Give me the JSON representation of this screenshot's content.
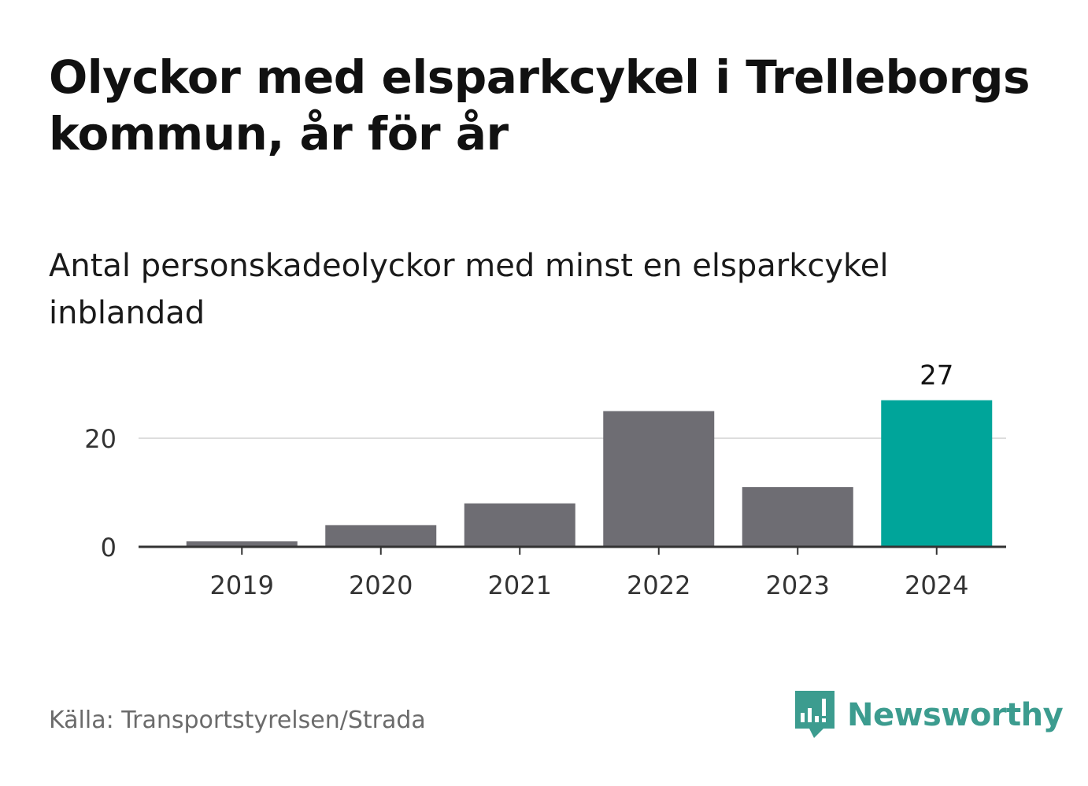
{
  "title": "Olyckor med elsparkcykel i Trelleborgs kommun, år för år",
  "subtitle": "Antal personskadeolyckor med minst en elsparkcykel inblandad",
  "source": "Källa: Transportstyrelsen/Strada",
  "brand": "Newsworthy",
  "colors": {
    "bar": "#6e6d73",
    "highlight": "#00a59a",
    "grid": "#dddddd",
    "axis": "#333333",
    "brand": "#3c9c8f"
  },
  "chart_data": {
    "type": "bar",
    "categories": [
      "2019",
      "2020",
      "2021",
      "2022",
      "2023",
      "2024"
    ],
    "values": [
      1,
      4,
      8,
      25,
      11,
      27
    ],
    "highlight_index": 5,
    "data_labels": [
      {
        "index": 5,
        "text": "27"
      }
    ],
    "yticks": [
      0,
      20
    ],
    "ylim": [
      0,
      30
    ],
    "grid": true,
    "legend": "none"
  }
}
